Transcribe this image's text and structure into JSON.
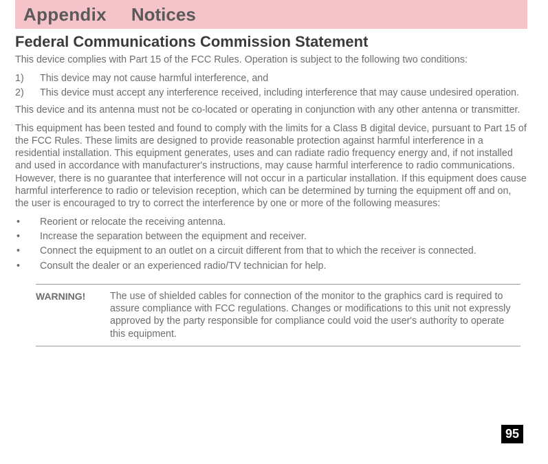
{
  "header": {
    "appendix": "Appendix",
    "notices": "Notices"
  },
  "section": {
    "title": "Federal Communications Commission Statement",
    "intro": "This device complies with Part 15 of the FCC Rules. Operation is subject to the following two conditions:",
    "list_numbered": {
      "item1_num": "1)",
      "item1": "This device may not cause harmful interference, and",
      "item2_num": "2)",
      "item2": "This device must accept any interference received, including interference that may cause undesired operation."
    },
    "para2": "This device and its antenna must not be co-located or operating in conjunction with any other antenna or transmitter.",
    "para3": "This equipment has been tested and found to comply with the limits for a Class B digital device, pursuant to Part 15 of the FCC Rules. These limits are designed to provide reasonable protection against harmful interference in a residential installation. This equipment generates, uses and can radiate radio frequency energy and, if not installed and used in accordance with manufacturer's instructions, may cause harmful interference to radio communications. However, there is no guarantee that interference will not occur in a particular installation. If this equipment does cause harmful interference to radio or television reception, which can be determined by turning the equipment off and on, the user is encouraged to try to correct the interference by one or more of the following measures:",
    "list_bullets": {
      "b1": "Reorient or relocate the receiving antenna.",
      "b2": "Increase the separation between the equipment and receiver.",
      "b3": "Connect the equipment to an outlet on a circuit different from that to which the receiver is connected.",
      "b4": "Consult the dealer or an experienced radio/TV technician for help."
    }
  },
  "warning": {
    "label": "WARNING!",
    "text": "The use of shielded cables for connection of the monitor to the graphics card is required to assure compliance with FCC regulations. Changes or modifications to this unit not expressly approved by the party responsible for compliance could void the user's authority to operate this equipment."
  },
  "page_number": "95",
  "styles": {
    "header_bg": "#f5c3ca",
    "header_text": "#5a5a5a",
    "title_color": "#3a3a3a",
    "body_color": "#6d6d6d",
    "rule_color": "#9a9a9a",
    "page_num_bg": "#000000",
    "page_num_fg": "#ffffff"
  }
}
